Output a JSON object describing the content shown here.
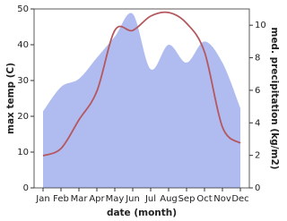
{
  "chart_data": {
    "type": "line-area",
    "categories": [
      "Jan",
      "Feb",
      "Mar",
      "Apr",
      "May",
      "Jun",
      "Jul",
      "Aug",
      "Sep",
      "Oct",
      "Nov",
      "Dec"
    ],
    "x_label": "date (month)",
    "y_label": "max temp (C)",
    "y2_label": "med. precipitation (kg/m2)",
    "ylim": [
      0,
      50
    ],
    "yticks": [
      0,
      10,
      20,
      30,
      40,
      50
    ],
    "y2lim": [
      0,
      11
    ],
    "y2ticks": [
      0,
      2,
      4,
      6,
      8,
      10
    ],
    "series": [
      {
        "name": "precipitation",
        "axis": "y2",
        "kind": "area",
        "color": "#b0bcf0",
        "values": [
          4.7,
          6.2,
          6.7,
          8.0,
          9.3,
          10.7,
          7.3,
          8.8,
          7.7,
          9.0,
          7.7,
          4.9
        ]
      },
      {
        "name": "max temp",
        "axis": "y",
        "kind": "line",
        "color": "#b5575e",
        "values": [
          9,
          11,
          19,
          27,
          44,
          44,
          48,
          49,
          46,
          38,
          17,
          12.5
        ]
      }
    ]
  }
}
